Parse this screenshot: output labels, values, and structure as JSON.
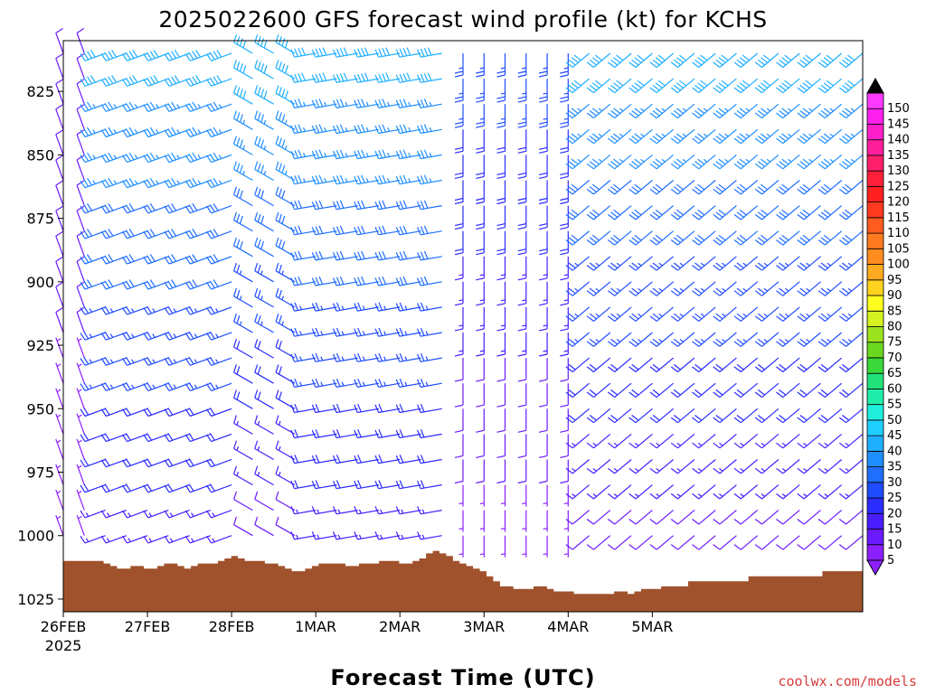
{
  "chart_data": {
    "type": "wind_barbs",
    "title": "2025022600 GFS forecast wind profile (kt) for KCHS",
    "xlabel": "Forecast Time (UTC)",
    "x_ticks": [
      "26FEB",
      "27FEB",
      "28FEB",
      "1MAR",
      "2MAR",
      "3MAR",
      "4MAR",
      "5MAR"
    ],
    "x_tick_year": "2025",
    "x_range_hours": [
      0,
      228
    ],
    "time_step_hours": 6,
    "y_ticks": [
      825,
      850,
      875,
      900,
      925,
      950,
      975,
      1000,
      1025
    ],
    "ylim": [
      805,
      1030
    ],
    "levels_hpa": [
      810,
      820,
      830,
      840,
      850,
      860,
      870,
      880,
      890,
      900,
      910,
      920,
      930,
      940,
      950,
      960,
      970,
      980,
      990,
      1000
    ],
    "colorbar": {
      "values": [
        5,
        10,
        15,
        20,
        25,
        30,
        35,
        40,
        45,
        50,
        55,
        60,
        65,
        70,
        75,
        80,
        85,
        90,
        95,
        100,
        105,
        110,
        115,
        120,
        125,
        130,
        135,
        140,
        145,
        150
      ],
      "colors": [
        "#8c1fff",
        "#6a1aff",
        "#4a1dff",
        "#2b2cff",
        "#1f4cff",
        "#1f6eff",
        "#1f8fff",
        "#1fafff",
        "#1fcfff",
        "#1feedd",
        "#1feeaa",
        "#22e27a",
        "#3ad83a",
        "#6ad81f",
        "#9de21f",
        "#d4f21f",
        "#ffff1f",
        "#ffd21f",
        "#ffaa1f",
        "#ff8c1f",
        "#ff7a1f",
        "#ff5a1f",
        "#ff3a1f",
        "#ff1f1f",
        "#ff1f3a",
        "#ff1f6a",
        "#ff1f9a",
        "#ff1fca",
        "#ff1fee",
        "#ff3aff"
      ]
    },
    "surface_pressure_hpa": [
      1010,
      1010,
      1010,
      1010,
      1010,
      1010,
      1011,
      1012,
      1013,
      1013,
      1012,
      1012,
      1013,
      1013,
      1012,
      1011,
      1011,
      1012,
      1013,
      1012,
      1011,
      1011,
      1011,
      1010,
      1009,
      1008,
      1009,
      1010,
      1010,
      1010,
      1011,
      1011,
      1012,
      1013,
      1014,
      1014,
      1013,
      1012,
      1011,
      1011,
      1011,
      1011,
      1012,
      1012,
      1011,
      1011,
      1011,
      1010,
      1010,
      1010,
      1011,
      1011,
      1010,
      1009,
      1007,
      1006,
      1007,
      1008,
      1010,
      1011,
      1012,
      1013,
      1014,
      1016,
      1018,
      1020,
      1020,
      1021,
      1021,
      1021,
      1020,
      1020,
      1021,
      1022,
      1022,
      1022,
      1023,
      1023,
      1023,
      1023,
      1023,
      1023,
      1022,
      1022,
      1023,
      1022,
      1021,
      1021,
      1021,
      1020,
      1020,
      1020,
      1020,
      1018,
      1018,
      1018,
      1018,
      1018,
      1018,
      1018,
      1018,
      1018,
      1016,
      1016,
      1016,
      1016,
      1016,
      1016,
      1016,
      1016,
      1016,
      1016,
      1016,
      1014,
      1014,
      1014,
      1014,
      1014,
      1014
    ],
    "wind_regimes": [
      {
        "hours": [
          0,
          12
        ],
        "direction_deg": 340,
        "speed_kt": [
          6,
          10
        ]
      },
      {
        "hours": [
          12,
          54
        ],
        "direction_deg": 250,
        "speed_kt": [
          15,
          40
        ]
      },
      {
        "hours": [
          54,
          72
        ],
        "direction_deg": 300,
        "speed_kt": [
          10,
          42
        ]
      },
      {
        "hours": [
          72,
          114
        ],
        "direction_deg": 260,
        "speed_kt": [
          15,
          40
        ]
      },
      {
        "hours": [
          114,
          150
        ],
        "direction_deg": 180,
        "speed_kt": [
          5,
          25
        ]
      },
      {
        "hours": [
          150,
          228
        ],
        "direction_deg": 230,
        "speed_kt": [
          10,
          40
        ]
      }
    ]
  },
  "credit": "coolwx.com/models"
}
